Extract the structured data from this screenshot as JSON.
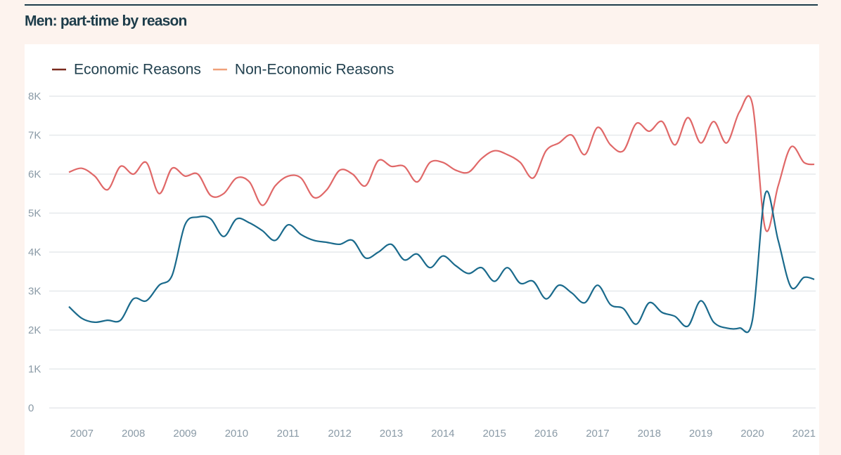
{
  "chart_data": {
    "type": "line",
    "title": "Men: part-time by reason",
    "x": [
      2006.75,
      2007,
      2007.25,
      2007.5,
      2007.75,
      2008,
      2008.25,
      2008.5,
      2008.75,
      2009,
      2009.25,
      2009.5,
      2009.75,
      2010,
      2010.25,
      2010.5,
      2010.75,
      2011,
      2011.25,
      2011.5,
      2011.75,
      2012,
      2012.25,
      2012.5,
      2012.75,
      2013,
      2013.25,
      2013.5,
      2013.75,
      2014,
      2014.25,
      2014.5,
      2014.75,
      2015,
      2015.25,
      2015.5,
      2015.75,
      2016,
      2016.25,
      2016.5,
      2016.75,
      2017,
      2017.25,
      2017.5,
      2017.75,
      2018,
      2018.25,
      2018.5,
      2018.75,
      2019,
      2019.25,
      2019.5,
      2019.75,
      2020,
      2020.25,
      2020.5,
      2020.75,
      2021,
      2021.2
    ],
    "series": [
      {
        "name": "Economic Reasons",
        "color": "#1a6a8c",
        "legend_color": "#7a2a1e",
        "values": [
          2600,
          2300,
          2200,
          2250,
          2250,
          2800,
          2750,
          3150,
          3400,
          4700,
          4900,
          4850,
          4400,
          4850,
          4750,
          4550,
          4300,
          4700,
          4450,
          4300,
          4250,
          4200,
          4300,
          3850,
          4000,
          4200,
          3800,
          3950,
          3600,
          3900,
          3650,
          3450,
          3600,
          3250,
          3600,
          3200,
          3250,
          2800,
          3150,
          2950,
          2700,
          3150,
          2650,
          2550,
          2150,
          2700,
          2450,
          2350,
          2100,
          2750,
          2200,
          2050,
          2050,
          2250,
          5500,
          4300,
          3100,
          3350,
          3300
        ]
      },
      {
        "name": "Non-Economic Reasons",
        "color": "#e06868",
        "legend_color": "#f0a07a",
        "values": [
          6050,
          6150,
          5950,
          5600,
          6200,
          6000,
          6300,
          5500,
          6150,
          5950,
          6000,
          5450,
          5500,
          5900,
          5800,
          5200,
          5700,
          5950,
          5900,
          5400,
          5600,
          6100,
          6000,
          5700,
          6350,
          6200,
          6200,
          5800,
          6300,
          6300,
          6100,
          6050,
          6400,
          6600,
          6500,
          6300,
          5900,
          6600,
          6800,
          7000,
          6500,
          7200,
          6750,
          6600,
          7300,
          7100,
          7350,
          6750,
          7450,
          6800,
          7350,
          6800,
          7600,
          7800,
          4600,
          5700,
          6700,
          6300,
          6250
        ]
      }
    ],
    "xlim": [
      2006.75,
      2021.2
    ],
    "xticks": [
      2007,
      2008,
      2009,
      2010,
      2011,
      2012,
      2013,
      2014,
      2015,
      2016,
      2017,
      2018,
      2019,
      2020,
      2021
    ],
    "ylim": [
      0,
      8000
    ],
    "yticks": [
      0,
      {
        "value": 1000,
        "label": "1K"
      },
      {
        "value": 2000,
        "label": "2K"
      },
      {
        "value": 3000,
        "label": "3K"
      },
      {
        "value": 4000,
        "label": "4K"
      },
      {
        "value": 5000,
        "label": "5K"
      },
      {
        "value": 6000,
        "label": "6K"
      },
      {
        "value": 7000,
        "label": "7K"
      },
      {
        "value": 8000,
        "label": "8K"
      }
    ],
    "grid": true,
    "legend": "top-left"
  }
}
